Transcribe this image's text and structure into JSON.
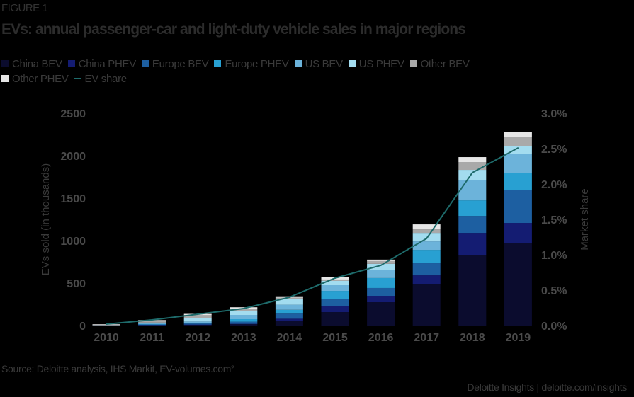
{
  "figure_label": "FIGURE 1",
  "chart_data": {
    "type": "bar",
    "stacked": true,
    "title": "EVs: annual passenger-car and light-duty vehicle sales in major regions",
    "categories": [
      "2010",
      "2011",
      "2012",
      "2013",
      "2014",
      "2015",
      "2016",
      "2017",
      "2018",
      "2019"
    ],
    "ylabel": "EVs sold (in thousands)",
    "ylim": [
      0,
      2500
    ],
    "yticks": [
      "0",
      "500",
      "1000",
      "1500",
      "2000",
      "2500"
    ],
    "y2label": "Market share",
    "y2lim": [
      0,
      3.0
    ],
    "y2ticks": [
      "0.0%",
      "0.5%",
      "1.0%",
      "1.5%",
      "2.0%",
      "2.5%",
      "3.0%"
    ],
    "grid": false,
    "legend_position": "top",
    "series": [
      {
        "name": "China BEV",
        "color": "#0b0c2e",
        "values": [
          1,
          5,
          10,
          15,
          55,
          158,
          275,
          483,
          833,
          975
        ]
      },
      {
        "name": "China PHEV",
        "color": "#141c72",
        "values": [
          0,
          1,
          2,
          5,
          25,
          67,
          75,
          108,
          258,
          233
        ]
      },
      {
        "name": "Europe BEV",
        "color": "#1d5fa1",
        "values": [
          1,
          10,
          12,
          25,
          60,
          83,
          92,
          142,
          200,
          390
        ]
      },
      {
        "name": "Europe PHEV",
        "color": "#28a0d2",
        "values": [
          0,
          1,
          8,
          30,
          45,
          100,
          117,
          158,
          183,
          200
        ]
      },
      {
        "name": "US BEV",
        "color": "#6cb3da",
        "values": [
          0,
          10,
          15,
          50,
          60,
          67,
          92,
          100,
          242,
          225
        ]
      },
      {
        "name": "US PHEV",
        "color": "#a3dcef",
        "values": [
          0,
          8,
          40,
          50,
          65,
          50,
          75,
          100,
          117,
          90
        ]
      },
      {
        "name": "Other BEV",
        "color": "#a9a9a9",
        "values": [
          12,
          25,
          35,
          25,
          17,
          17,
          33,
          42,
          92,
          108
        ]
      },
      {
        "name": "Other PHEV",
        "color": "#e6e6e6",
        "values": [
          1,
          5,
          15,
          15,
          17,
          25,
          17,
          58,
          58,
          58
        ]
      }
    ],
    "line_series": {
      "name": "EV share",
      "color": "#1e6b6b",
      "axis": "right",
      "values": [
        0.02,
        0.08,
        0.16,
        0.24,
        0.4,
        0.67,
        0.85,
        1.23,
        2.16,
        2.51
      ]
    }
  },
  "source": "Source: Deloitte analysis, IHS Markit, EV-volumes.com²",
  "credit": "Deloitte Insights | deloitte.com/insights"
}
